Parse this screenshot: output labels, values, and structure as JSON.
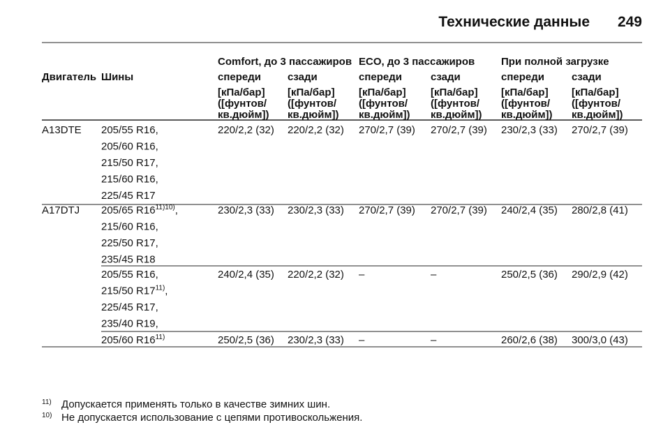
{
  "header": {
    "title": "Технические данные",
    "page": "249"
  },
  "table": {
    "groups": [
      "Comfort, до 3 пассажиров",
      "ECO, до 3 пассажиров",
      "При полной загрузке"
    ],
    "engine_header": "Двигатель",
    "tires_header": "Шины",
    "columns": [
      {
        "label": "спереди",
        "unit": [
          "[кПа/бар]",
          "([фунтов/",
          "кв.дюйм])"
        ]
      },
      {
        "label": "сзади",
        "unit": [
          "[кПа/бар]",
          "([фунтов/",
          "кв.дюйм])"
        ]
      },
      {
        "label": "спереди",
        "unit": [
          "[кПа/бар]",
          "([фунтов/",
          "кв.дюйм])"
        ]
      },
      {
        "label": "сзади",
        "unit": [
          "[кПа/бар]",
          "([фунтов/",
          "кв.дюйм])"
        ]
      },
      {
        "label": "спереди",
        "unit": [
          "[кПа/бар]",
          "([фунтов/",
          "кв.дюйм])"
        ]
      },
      {
        "label": "сзади",
        "unit": [
          "[кПа/бар]",
          "([фунтов/",
          "кв.дюйм])"
        ]
      }
    ],
    "rows": [
      {
        "engine": "A13DTE",
        "tires": [
          {
            "text": "205/55 R16,"
          },
          {
            "text": "205/60 R16,"
          },
          {
            "text": "215/50 R17,"
          },
          {
            "text": "215/60 R16,"
          },
          {
            "text": "225/45 R17"
          }
        ],
        "values": [
          "220/2,2 (32)",
          "220/2,2 (32)",
          "270/2,7 (39)",
          "270/2,7 (39)",
          "230/2,3 (33)",
          "270/2,7 (39)"
        ]
      },
      {
        "engine": "A17DTJ",
        "tires": [
          {
            "text": "205/65 R16",
            "note": "11)10)",
            "tail": ","
          },
          {
            "text": "215/60 R16,"
          },
          {
            "text": "225/50 R17,"
          },
          {
            "text": "235/45 R18"
          }
        ],
        "values": [
          "230/2,3 (33)",
          "230/2,3 (33)",
          "270/2,7 (39)",
          "270/2,7 (39)",
          "240/2,4 (35)",
          "280/2,8 (41)"
        ]
      },
      {
        "tires": [
          {
            "text": "205/55 R16,"
          },
          {
            "text": "215/50 R17",
            "note": "11)",
            "tail": ","
          },
          {
            "text": "225/45 R17,"
          },
          {
            "text": "235/40 R19,"
          }
        ],
        "values": [
          "240/2,4 (35)",
          "220/2,2 (32)",
          "–",
          "–",
          "250/2,5 (36)",
          "290/2,9 (42)"
        ]
      },
      {
        "tires": [
          {
            "text": "205/60 R16",
            "note": "11)"
          }
        ],
        "values": [
          "250/2,5 (36)",
          "230/2,3 (33)",
          "–",
          "–",
          "260/2,6 (38)",
          "300/3,0 (43)"
        ]
      }
    ]
  },
  "footnotes": [
    {
      "mark": "11)",
      "text": "Допускается применять только в качестве зимних шин."
    },
    {
      "mark": "10)",
      "text": "Не допускается использование с цепями противоскольжения."
    }
  ]
}
